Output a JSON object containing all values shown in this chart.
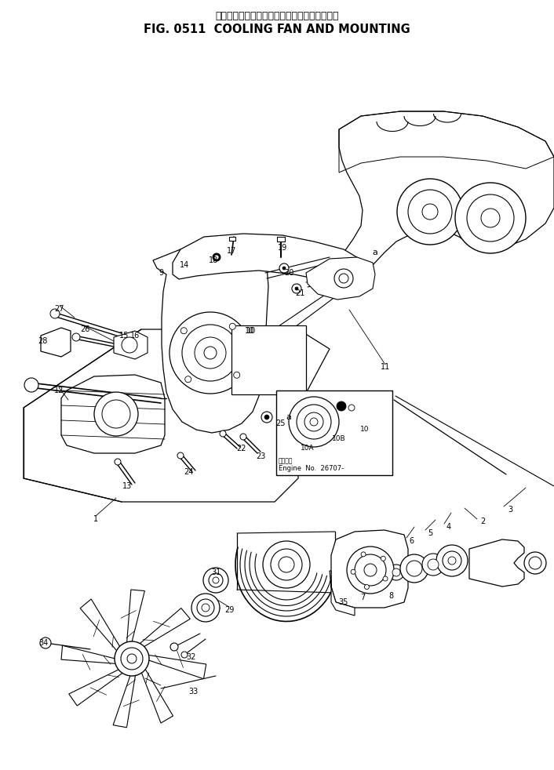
{
  "title_japanese": "クーリング　ファン　および　マウンティング",
  "title_english": "FIG. 0511  COOLING FAN AND MOUNTING",
  "engine_note_jp": "適用番号",
  "engine_note_en": "Engine  No.  26707-",
  "bg_color": "#ffffff"
}
